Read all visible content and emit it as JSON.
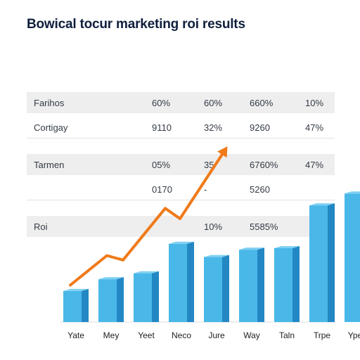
{
  "title": "Bowical tocur marketing roi results",
  "table": {
    "rows": [
      {
        "cells": [
          "Farihos",
          "60%",
          "60%",
          "660%",
          "10%"
        ]
      },
      {
        "cells": [
          "Cortigay",
          "9110",
          "32%",
          "9260",
          "47%"
        ]
      },
      {
        "cells": [
          "Tarmen",
          "05%",
          "35",
          "6760%",
          "47%"
        ]
      },
      {
        "cells": [
          "",
          "0170",
          "-",
          "5260",
          ""
        ]
      },
      {
        "cells": [
          "Roi",
          "",
          "10%",
          "5585%",
          ""
        ]
      }
    ]
  },
  "chart_data": {
    "type": "bar",
    "categories": [
      "Yate",
      "Mey",
      "Yeet",
      "Neco",
      "Jure",
      "Way",
      "Taln",
      "Trpe",
      "Ypes"
    ],
    "series": [
      {
        "values": [
          2.1,
          2.9,
          3.3,
          5.3,
          4.4,
          4.9,
          5.0,
          7.9,
          8.7
        ]
      }
    ],
    "trend_line": {
      "values": [
        2.5,
        4.5,
        4.2,
        7.7,
        7.0,
        11.5
      ]
    },
    "ylim": [
      0,
      10
    ],
    "colors": {
      "bar_front": "#49b8e8",
      "bar_side": "#2387c4",
      "bar_top": "#7fd0f2",
      "trend": "#f07a1a"
    }
  }
}
